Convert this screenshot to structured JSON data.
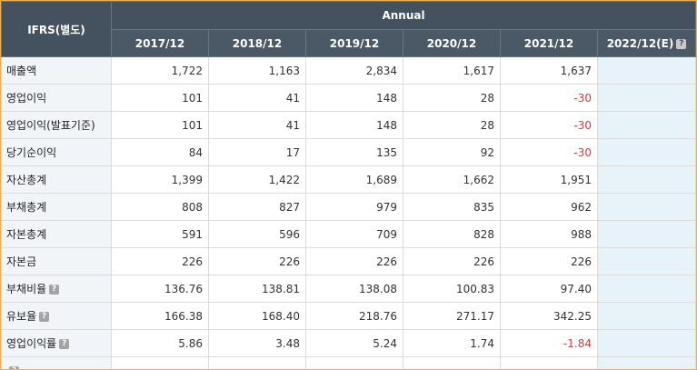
{
  "header": {
    "corner": "IFRS(별도)",
    "group": "Annual",
    "years": [
      "2017/12",
      "2018/12",
      "2019/12",
      "2020/12",
      "2021/12"
    ],
    "estimate_year": "2022/12(E)"
  },
  "rows": [
    {
      "label": "매출액",
      "help": false,
      "values": [
        "1,722",
        "1,163",
        "2,834",
        "1,617",
        "1,637"
      ]
    },
    {
      "label": "영업이익",
      "help": false,
      "values": [
        "101",
        "41",
        "148",
        "28",
        "-30"
      ]
    },
    {
      "label": "영업이익(발표기준)",
      "help": false,
      "values": [
        "101",
        "41",
        "148",
        "28",
        "-30"
      ]
    },
    {
      "label": "당기순이익",
      "help": false,
      "values": [
        "84",
        "17",
        "135",
        "92",
        "-30"
      ]
    },
    {
      "label": "자산총계",
      "help": false,
      "values": [
        "1,399",
        "1,422",
        "1,689",
        "1,662",
        "1,951"
      ]
    },
    {
      "label": "부채총계",
      "help": false,
      "values": [
        "808",
        "827",
        "979",
        "835",
        "962"
      ]
    },
    {
      "label": "자본총계",
      "help": false,
      "values": [
        "591",
        "596",
        "709",
        "828",
        "988"
      ]
    },
    {
      "label": "자본금",
      "help": false,
      "values": [
        "226",
        "226",
        "226",
        "226",
        "226"
      ]
    },
    {
      "label": "부채비율",
      "help": true,
      "values": [
        "136.76",
        "138.81",
        "138.08",
        "100.83",
        "97.40"
      ]
    },
    {
      "label": "유보율",
      "help": true,
      "values": [
        "166.38",
        "168.40",
        "218.76",
        "271.17",
        "342.25"
      ]
    },
    {
      "label": "영업이익률",
      "help": true,
      "values": [
        "5.86",
        "3.48",
        "5.24",
        "1.74",
        "-1.84"
      ]
    },
    {
      "label": "",
      "help": true,
      "values": [
        "",
        "",
        "",
        "",
        ""
      ]
    }
  ],
  "colors": {
    "header_bg": "#44515f",
    "label_bg": "#f1f4f8",
    "estimate_bg": "#e7f3f9",
    "negative": "#e03333",
    "border_accent": "#e7b15a"
  },
  "icons": {
    "help": "question-mark-icon"
  }
}
